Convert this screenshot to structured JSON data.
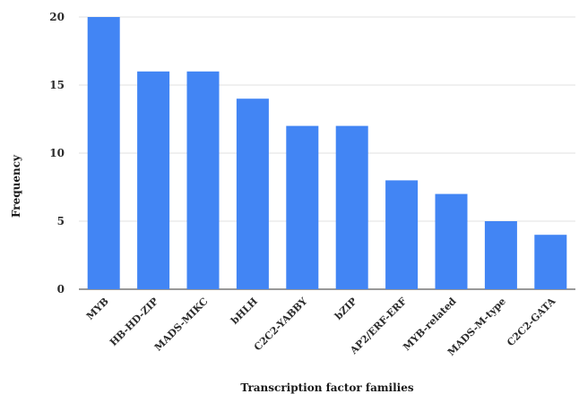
{
  "chart_data": {
    "type": "bar",
    "xlabel": "Transcription factor families",
    "ylabel": "Frequency",
    "categories": [
      "MYB",
      "HB-HD-ZIP",
      "MADS-MIKC",
      "bHLH",
      "C2C2-YABBY",
      "bZIP",
      "AP2/ERF-ERF",
      "MYB-related",
      "MADS-M-type",
      "C2C2-GATA"
    ],
    "values": [
      20,
      16,
      16,
      14,
      12,
      12,
      8,
      7,
      5,
      4
    ],
    "ylim": [
      0,
      20
    ],
    "yticks": [
      "0",
      "5",
      "10",
      "15",
      "20"
    ],
    "grid": true,
    "legend": "none",
    "bar_color": "#4285f4"
  }
}
